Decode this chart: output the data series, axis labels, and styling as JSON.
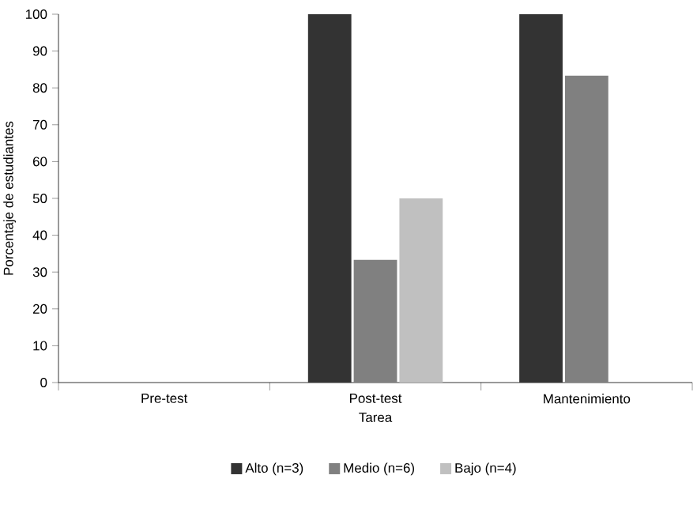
{
  "chart_data": {
    "type": "bar",
    "xlabel": "Tarea",
    "ylabel": "Porcentaje de estudiantes",
    "categories": [
      "Pre-test",
      "Post-test",
      "Mantenimiento"
    ],
    "series": [
      {
        "name": "Alto (n=3)",
        "color": "#333333",
        "values": [
          0,
          100,
          100
        ]
      },
      {
        "name": "Medio (n=6)",
        "color": "#808080",
        "values": [
          0,
          33.3,
          83.3
        ]
      },
      {
        "name": "Bajo (n=4)",
        "color": "#c0c0c0",
        "values": [
          0,
          50,
          0
        ]
      }
    ],
    "ylim": [
      0,
      100
    ],
    "yticks": [
      0,
      10,
      20,
      30,
      40,
      50,
      60,
      70,
      80,
      90,
      100
    ],
    "grid": false,
    "legend": "bottom"
  }
}
